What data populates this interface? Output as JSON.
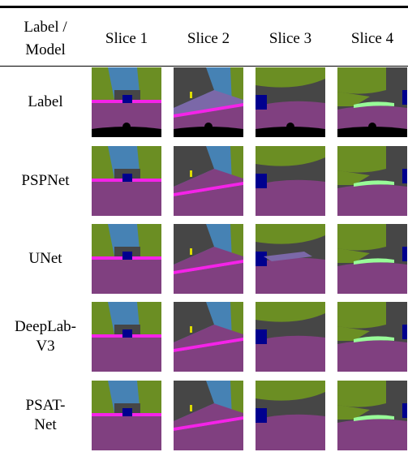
{
  "table": {
    "header": {
      "corner": [
        "Label /",
        "Model"
      ],
      "columns": [
        "Slice 1",
        "Slice 2",
        "Slice 3",
        "Slice 4"
      ]
    },
    "rows": [
      {
        "label": [
          "Label"
        ]
      },
      {
        "label": [
          "PSPNet"
        ]
      },
      {
        "label": [
          "UNet"
        ]
      },
      {
        "label": [
          "DeepLab-",
          "V3"
        ]
      },
      {
        "label": [
          "PSAT-",
          "Net"
        ]
      }
    ]
  }
}
